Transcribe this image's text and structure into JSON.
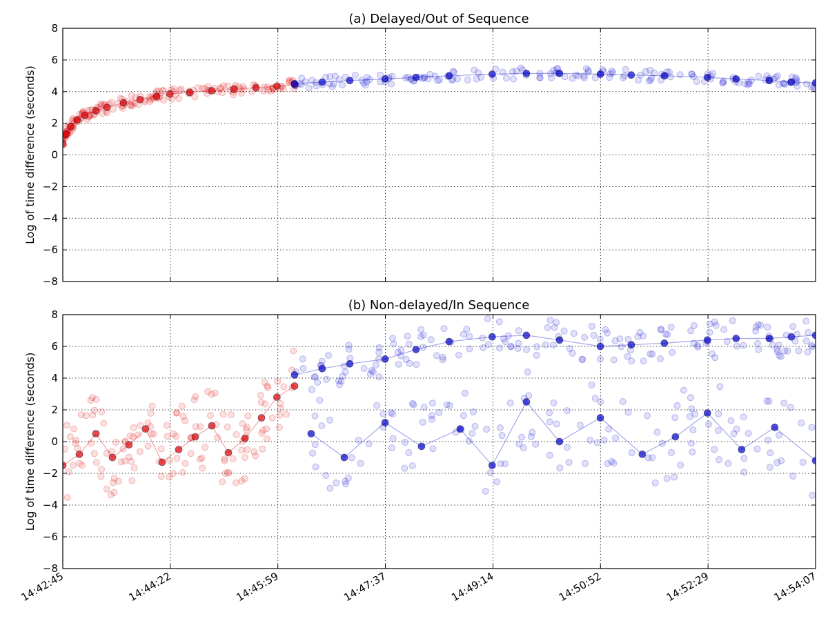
{
  "colors": {
    "red_series": "#dd0000",
    "blue_series": "#0000cc",
    "background": "#ffffff"
  },
  "chart_data": [
    {
      "type": "scatter",
      "title": "(a) Delayed/Out of Sequence",
      "xlabel": "",
      "ylabel": "Log of time difference (seconds)",
      "ylim": [
        -8,
        8
      ],
      "yticks": [
        "8",
        "6",
        "4",
        "2",
        "0",
        "−2",
        "−4",
        "−6",
        "−8"
      ],
      "xlim": [
        "14:42:45",
        "14:54:07"
      ],
      "xticks": [
        "14:42:45",
        "14:44:22",
        "14:45:59",
        "14:47:37",
        "14:49:14",
        "14:50:52",
        "14:52:29",
        "14:54:07"
      ],
      "grid": true,
      "series": [
        {
          "color": "#dd0000",
          "x": [
            "14:42:45",
            "14:42:48",
            "14:42:52",
            "14:42:58",
            "14:43:05",
            "14:43:15",
            "14:43:25",
            "14:43:40",
            "14:43:55",
            "14:44:10",
            "14:44:22",
            "14:44:40",
            "14:45:00",
            "14:45:20",
            "14:45:40",
            "14:45:59",
            "14:46:15"
          ],
          "values": [
            0.7,
            1.3,
            1.8,
            2.2,
            2.5,
            2.8,
            3.0,
            3.3,
            3.5,
            3.7,
            3.85,
            3.95,
            4.05,
            4.15,
            4.25,
            4.35,
            4.45
          ]
        },
        {
          "color": "#0000cc",
          "x": [
            "14:46:15",
            "14:46:40",
            "14:47:05",
            "14:47:37",
            "14:48:05",
            "14:48:35",
            "14:49:14",
            "14:49:45",
            "14:50:15",
            "14:50:52",
            "14:51:20",
            "14:51:50",
            "14:52:29",
            "14:52:55",
            "14:53:25",
            "14:53:45",
            "14:54:07"
          ],
          "values": [
            4.5,
            4.6,
            4.7,
            4.8,
            4.9,
            5.0,
            5.1,
            5.15,
            5.15,
            5.1,
            5.05,
            5.0,
            4.9,
            4.8,
            4.7,
            4.6,
            4.55
          ]
        }
      ]
    },
    {
      "type": "scatter",
      "title": "(b) Non-delayed/In Sequence",
      "xlabel": "",
      "ylabel": "Log of time difference (seconds)",
      "ylim": [
        -8,
        8
      ],
      "yticks": [
        "8",
        "6",
        "4",
        "2",
        "0",
        "−2",
        "−4",
        "−6",
        "−8"
      ],
      "xlim": [
        "14:42:45",
        "14:54:07"
      ],
      "xticks": [
        "14:42:45",
        "14:44:22",
        "14:45:59",
        "14:47:37",
        "14:49:14",
        "14:50:52",
        "14:52:29",
        "14:54:07"
      ],
      "grid": true,
      "series": [
        {
          "color": "#dd0000",
          "x": [
            "14:42:45",
            "14:43:00",
            "14:43:15",
            "14:43:30",
            "14:43:45",
            "14:44:00",
            "14:44:15",
            "14:44:30",
            "14:44:45",
            "14:45:00",
            "14:45:15",
            "14:45:30",
            "14:45:45",
            "14:45:59",
            "14:46:15"
          ],
          "values": [
            -1.5,
            -0.8,
            0.5,
            -1.0,
            -0.2,
            0.8,
            -1.3,
            -0.5,
            0.3,
            1.0,
            -0.7,
            0.2,
            1.5,
            2.8,
            3.5
          ]
        },
        {
          "color": "#0000cc",
          "x": [
            "14:46:15",
            "14:46:40",
            "14:47:05",
            "14:47:37",
            "14:48:05",
            "14:48:35",
            "14:49:14",
            "14:49:45",
            "14:50:15",
            "14:50:52",
            "14:51:20",
            "14:51:50",
            "14:52:29",
            "14:52:55",
            "14:53:25",
            "14:53:45",
            "14:54:07"
          ],
          "values": [
            4.2,
            4.6,
            4.9,
            5.2,
            5.8,
            6.3,
            6.6,
            6.7,
            6.4,
            6.0,
            6.1,
            6.2,
            6.4,
            6.5,
            6.5,
            6.6,
            6.7
          ]
        },
        {
          "color": "#0000cc",
          "x": [
            "14:46:30",
            "14:47:00",
            "14:47:37",
            "14:48:10",
            "14:48:45",
            "14:49:14",
            "14:49:45",
            "14:50:15",
            "14:50:52",
            "14:51:30",
            "14:52:00",
            "14:52:29",
            "14:53:00",
            "14:53:30",
            "14:54:07"
          ],
          "values": [
            0.5,
            -1.0,
            1.2,
            -0.3,
            0.8,
            -1.5,
            2.5,
            0.0,
            1.5,
            -0.8,
            0.3,
            1.8,
            -0.5,
            0.9,
            -1.2
          ]
        }
      ]
    }
  ]
}
